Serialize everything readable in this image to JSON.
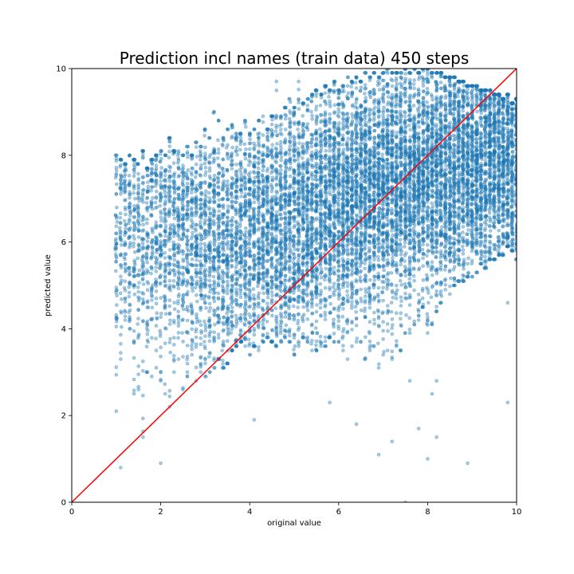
{
  "chart_data": {
    "type": "scatter",
    "title": "Prediction incl names (train data) 450 steps",
    "xlabel": "original value",
    "ylabel": "predicted value",
    "xlim": [
      0,
      10
    ],
    "ylim": [
      0,
      10
    ],
    "xticks": [
      0,
      2,
      4,
      6,
      8,
      10
    ],
    "yticks": [
      0,
      2,
      4,
      6,
      8,
      10
    ],
    "xtick_labels": [
      "0",
      "2",
      "4",
      "6",
      "8",
      "10"
    ],
    "ytick_labels": [
      "0",
      "2",
      "4",
      "6",
      "8",
      "10"
    ],
    "grid": false,
    "series": [
      {
        "color": "#1f77b4",
        "alpha": 0.4,
        "x_values": [
          1.0,
          1.1,
          1.2,
          1.3,
          1.4,
          1.5,
          1.6,
          1.7,
          1.8,
          1.9,
          2.0,
          2.1,
          2.2,
          2.3,
          2.4,
          2.5,
          2.6,
          2.7,
          2.8,
          2.9,
          3.0,
          3.1,
          3.2,
          3.3,
          3.4,
          3.5,
          3.6,
          3.7,
          3.8,
          3.9,
          4.0,
          4.1,
          4.2,
          4.3,
          4.4,
          4.5,
          4.6,
          4.7,
          4.8,
          4.9,
          5.0,
          5.1,
          5.2,
          5.3,
          5.4,
          5.5,
          5.6,
          5.7,
          5.8,
          5.9,
          6.0,
          6.1,
          6.2,
          6.3,
          6.4,
          6.5,
          6.6,
          6.7,
          6.8,
          6.9,
          7.0,
          7.1,
          7.2,
          7.3,
          7.4,
          7.5,
          7.6,
          7.7,
          7.8,
          7.9,
          8.0,
          8.1,
          8.2,
          8.3,
          8.4,
          8.5,
          8.6,
          8.7,
          8.8,
          8.9,
          9.0,
          9.1,
          9.2,
          9.3,
          9.4,
          9.5,
          9.6,
          9.7,
          9.8,
          9.9,
          10.0
        ],
        "y_low": [
          2.1,
          3.3,
          4.2,
          4.0,
          2.5,
          2.6,
          1.5,
          3.0,
          2.9,
          3.1,
          2.8,
          2.5,
          2.2,
          3.0,
          3.3,
          2.6,
          2.9,
          3.4,
          2.8,
          3.0,
          2.9,
          3.0,
          3.1,
          3.3,
          3.1,
          3.2,
          3.5,
          3.6,
          3.7,
          3.6,
          3.4,
          3.6,
          3.5,
          3.7,
          3.8,
          3.7,
          3.6,
          3.7,
          3.8,
          3.7,
          3.4,
          3.6,
          3.8,
          3.7,
          3.5,
          3.5,
          3.6,
          3.6,
          3.8,
          3.7,
          3.7,
          3.5,
          3.3,
          3.6,
          3.7,
          3.7,
          3.3,
          3.5,
          3.6,
          3.1,
          3.4,
          3.5,
          3.3,
          3.6,
          3.5,
          3.9,
          3.9,
          4.1,
          4.2,
          4.5,
          3.9,
          4.1,
          4.4,
          4.6,
          4.9,
          4.8,
          5.0,
          5.1,
          5.1,
          5.2,
          5.2,
          5.3,
          5.5,
          5.4,
          5.6,
          5.6,
          5.7,
          5.7,
          5.9,
          5.8,
          5.6
        ],
        "y_q1": [
          5.4,
          5.6,
          5.6,
          5.4,
          5.5,
          5.6,
          5.5,
          5.4,
          5.5,
          5.4,
          5.3,
          5.3,
          5.4,
          5.3,
          5.4,
          5.3,
          5.3,
          5.2,
          5.3,
          5.2,
          5.2,
          5.1,
          5.1,
          5.2,
          5.1,
          5.1,
          5.2,
          5.2,
          5.2,
          5.3,
          5.3,
          5.3,
          5.4,
          5.4,
          5.4,
          5.5,
          5.5,
          5.5,
          5.6,
          5.6,
          5.6,
          5.7,
          5.7,
          5.7,
          5.8,
          5.8,
          5.9,
          5.9,
          5.9,
          6.0,
          6.0,
          6.0,
          6.1,
          6.1,
          6.1,
          6.2,
          6.2,
          6.2,
          6.3,
          6.3,
          6.3,
          6.4,
          6.4,
          6.4,
          6.5,
          6.5,
          6.5,
          6.6,
          6.6,
          6.6,
          6.7,
          6.7,
          6.7,
          6.8,
          6.8,
          6.8,
          6.8,
          6.9,
          6.9,
          6.9,
          7.0,
          7.0,
          7.0,
          7.0,
          7.1,
          7.1,
          7.1,
          7.1,
          7.1,
          7.2,
          7.2
        ],
        "y_q3": [
          7.1,
          7.2,
          7.1,
          7.0,
          7.1,
          7.0,
          7.1,
          7.0,
          7.0,
          7.0,
          6.9,
          6.9,
          7.0,
          6.9,
          6.9,
          6.9,
          6.8,
          6.9,
          6.8,
          6.8,
          6.8,
          6.8,
          6.8,
          6.9,
          6.9,
          6.9,
          6.9,
          6.9,
          7.0,
          7.0,
          7.0,
          7.1,
          7.1,
          7.1,
          7.2,
          7.2,
          7.2,
          7.3,
          7.3,
          7.4,
          7.4,
          7.4,
          7.5,
          7.5,
          7.6,
          7.6,
          7.6,
          7.7,
          7.7,
          7.8,
          7.8,
          7.8,
          7.9,
          7.9,
          7.9,
          8.0,
          8.0,
          8.0,
          8.1,
          8.1,
          8.1,
          8.2,
          8.2,
          8.2,
          8.3,
          8.3,
          8.3,
          8.3,
          8.4,
          8.4,
          8.4,
          8.4,
          8.5,
          8.5,
          8.5,
          8.5,
          8.5,
          8.6,
          8.6,
          8.6,
          8.6,
          8.6,
          8.7,
          8.7,
          8.7,
          8.7,
          8.7,
          8.7,
          8.8,
          8.8,
          8.8
        ],
        "y_high": [
          8.0,
          7.9,
          7.8,
          8.0,
          7.9,
          7.8,
          8.1,
          7.7,
          7.9,
          8.0,
          8.1,
          8.0,
          8.4,
          8.1,
          8.1,
          8.0,
          8.2,
          8.0,
          8.3,
          8.2,
          8.6,
          8.4,
          9.0,
          8.8,
          8.4,
          8.6,
          8.7,
          8.5,
          8.5,
          8.8,
          8.5,
          8.6,
          8.8,
          8.9,
          8.6,
          8.9,
          9.7,
          8.9,
          9.1,
          9.3,
          9.1,
          9.7,
          9.2,
          9.3,
          9.4,
          9.5,
          9.4,
          9.6,
          9.5,
          9.7,
          9.5,
          9.6,
          9.8,
          9.7,
          9.8,
          9.7,
          9.9,
          9.8,
          9.9,
          9.8,
          9.9,
          10.0,
          9.9,
          9.9,
          9.9,
          10.0,
          9.9,
          10.0,
          9.9,
          10.0,
          10.0,
          9.9,
          9.9,
          9.9,
          9.8,
          9.8,
          9.8,
          9.7,
          9.7,
          9.6,
          9.6,
          9.6,
          9.5,
          9.5,
          9.5,
          9.4,
          9.4,
          9.3,
          9.4,
          9.2,
          9.3
        ],
        "outliers": [
          [
            1.1,
            0.8
          ],
          [
            2.0,
            0.9
          ],
          [
            5.8,
            2.3
          ],
          [
            6.4,
            1.8
          ],
          [
            6.9,
            1.1
          ],
          [
            7.2,
            1.4
          ],
          [
            7.8,
            1.7
          ],
          [
            8.0,
            1.0
          ],
          [
            8.2,
            1.5
          ],
          [
            8.9,
            0.9
          ],
          [
            9.8,
            2.3
          ],
          [
            7.5,
            0.0
          ],
          [
            4.1,
            1.9
          ],
          [
            8.1,
            2.5
          ],
          [
            7.6,
            2.8
          ],
          [
            8.2,
            2.8
          ],
          [
            9.8,
            4.6
          ]
        ]
      }
    ],
    "reference_line": {
      "from": [
        0,
        0
      ],
      "to": [
        10,
        10
      ],
      "color": "#ff0000"
    }
  }
}
